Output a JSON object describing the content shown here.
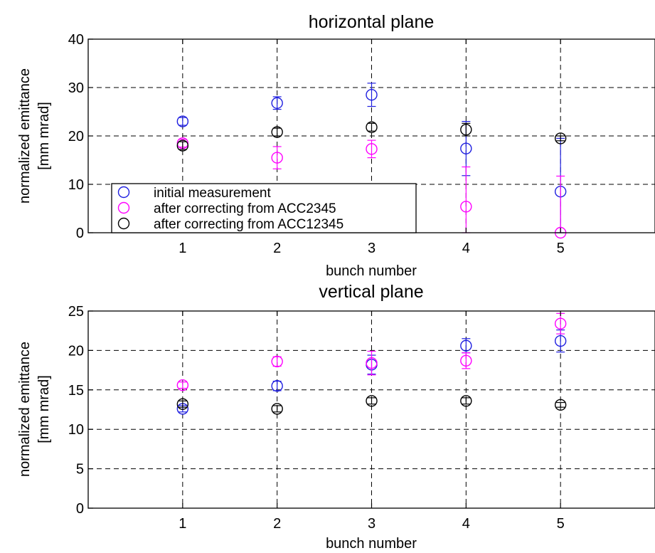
{
  "colors": {
    "initial": "#1f1fe0",
    "acc2345": "#ff00ff",
    "acc12345": "#000000",
    "grid": "#000000",
    "background": "#ffffff"
  },
  "chart_data": [
    {
      "type": "scatter",
      "error_bars": true,
      "title": "horizontal plane",
      "xlabel": "bunch number",
      "ylabel_line1": "normalized emittance",
      "ylabel_line2": "[mm mrad]",
      "xlim": [
        0,
        6
      ],
      "ylim": [
        0,
        40
      ],
      "xticks": [
        1,
        2,
        3,
        4,
        5
      ],
      "yticks": [
        0,
        10,
        20,
        30,
        40
      ],
      "grid": true,
      "legend_position": "bottom-left",
      "series": [
        {
          "name": "initial measurement",
          "color_key": "initial",
          "x": [
            1,
            2,
            3,
            4,
            5
          ],
          "y": [
            23,
            26.8,
            28.5,
            17.4,
            8.5
          ],
          "yerr": [
            0.8,
            1.3,
            2.4,
            5.6,
            11
          ]
        },
        {
          "name": "after correcting from ACC2345",
          "color_key": "acc2345",
          "x": [
            1,
            2,
            3,
            4,
            5
          ],
          "y": [
            18.5,
            15.5,
            17.3,
            5.4,
            0
          ],
          "yerr": [
            0.8,
            2.3,
            1.8,
            8.2,
            11.7
          ]
        },
        {
          "name": "after correcting from ACC12345",
          "color_key": "acc12345",
          "x": [
            1,
            2,
            3,
            4,
            5
          ],
          "y": [
            18,
            20.8,
            21.8,
            21.3,
            19.5
          ],
          "yerr": [
            0.8,
            0.8,
            0.8,
            1.3,
            0.5
          ]
        }
      ]
    },
    {
      "type": "scatter",
      "error_bars": true,
      "title": "vertical plane",
      "xlabel": "bunch number",
      "ylabel_line1": "normalized emittance",
      "ylabel_line2": "[mm mrad]",
      "xlim": [
        0,
        6
      ],
      "ylim": [
        0,
        25
      ],
      "xticks": [
        1,
        2,
        3,
        4,
        5
      ],
      "yticks": [
        0,
        5,
        10,
        15,
        20,
        25
      ],
      "grid": true,
      "series": [
        {
          "color_key": "initial",
          "x": [
            1,
            2,
            3,
            4,
            5
          ],
          "y": [
            12.6,
            15.5,
            18.2,
            20.6,
            21.2
          ],
          "yerr": [
            0.4,
            0.6,
            1.2,
            0.9,
            1.4
          ]
        },
        {
          "color_key": "acc2345",
          "x": [
            1,
            2,
            3,
            4,
            5
          ],
          "y": [
            15.6,
            18.6,
            18.4,
            18.7,
            23.4
          ],
          "yerr": [
            0.4,
            0.6,
            1.5,
            1.0,
            1.3
          ]
        },
        {
          "color_key": "acc12345",
          "x": [
            1,
            2,
            3,
            4,
            5
          ],
          "y": [
            13.2,
            12.6,
            13.6,
            13.6,
            13.1
          ],
          "yerr": [
            0.4,
            0.4,
            0.4,
            0.4,
            0.3
          ]
        }
      ]
    }
  ]
}
